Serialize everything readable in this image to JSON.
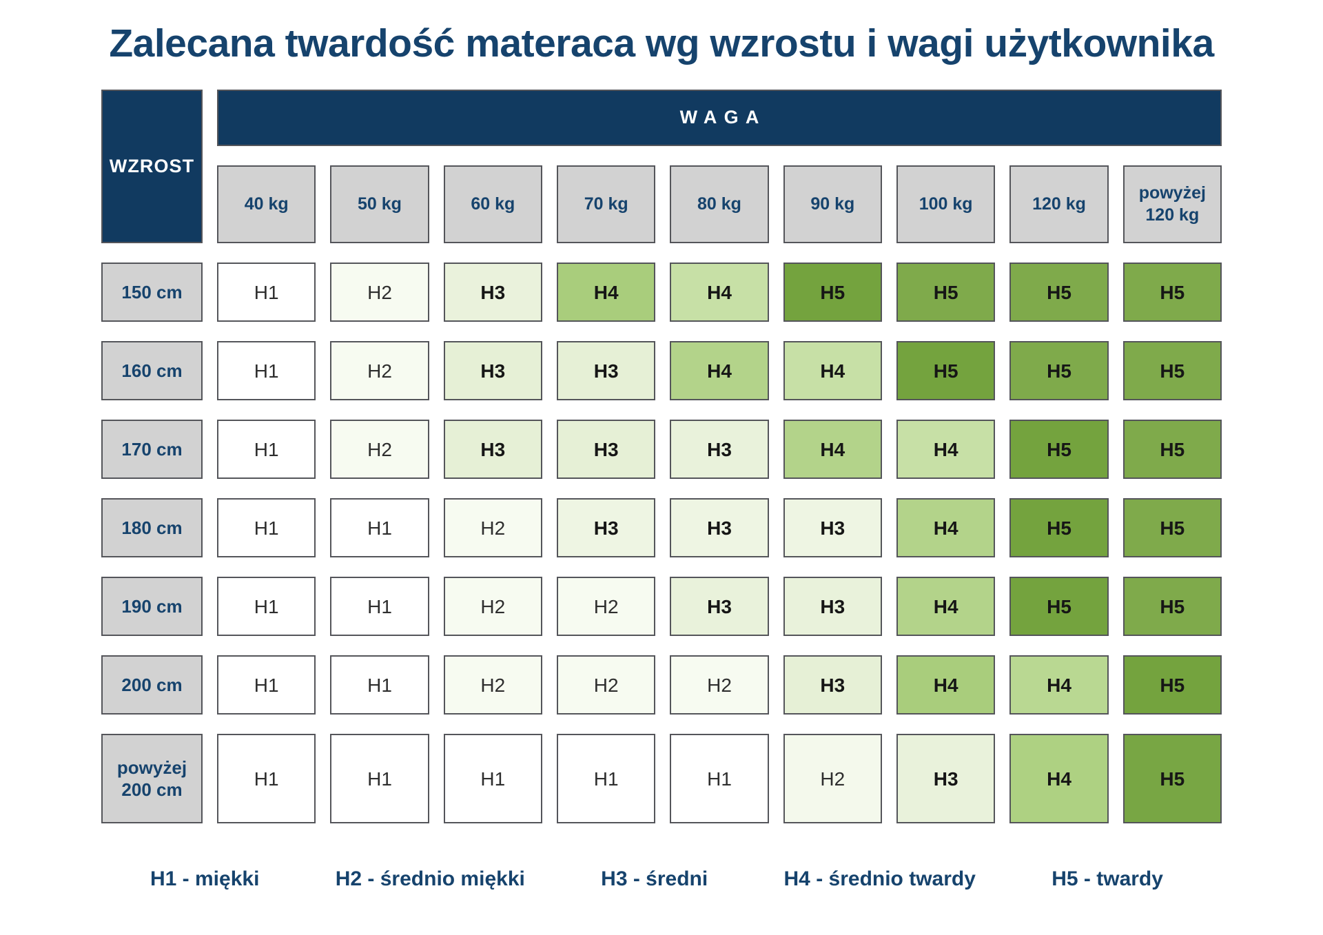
{
  "chart_data": {
    "type": "table",
    "title": "Zalecana twardość materaca wg wzrostu i wagi użytkownika",
    "col_group_label": "WAGA",
    "row_group_label": "WZROST",
    "columns": [
      "40 kg",
      "50 kg",
      "60 kg",
      "70 kg",
      "80 kg",
      "90 kg",
      "100 kg",
      "120 kg",
      "powyżej 120 kg"
    ],
    "rows": [
      {
        "label": "150 cm",
        "cells": [
          {
            "v": "H1",
            "c": "#ffffff"
          },
          {
            "v": "H2",
            "c": "#f7fbf1"
          },
          {
            "v": "H3",
            "c": "#eaf2dc"
          },
          {
            "v": "H4",
            "c": "#a9cd7c"
          },
          {
            "v": "H4",
            "c": "#c7e0a6"
          },
          {
            "v": "H5",
            "c": "#74a33e"
          },
          {
            "v": "H5",
            "c": "#7faa4b"
          },
          {
            "v": "H5",
            "c": "#7faa4b"
          },
          {
            "v": "H5",
            "c": "#7faa4b"
          }
        ]
      },
      {
        "label": "160 cm",
        "cells": [
          {
            "v": "H1",
            "c": "#ffffff"
          },
          {
            "v": "H2",
            "c": "#f7fbf1"
          },
          {
            "v": "H3",
            "c": "#e6f0d6"
          },
          {
            "v": "H3",
            "c": "#e6f0d6"
          },
          {
            "v": "H4",
            "c": "#b3d38a"
          },
          {
            "v": "H4",
            "c": "#c7e0a6"
          },
          {
            "v": "H5",
            "c": "#74a33e"
          },
          {
            "v": "H5",
            "c": "#7faa4b"
          },
          {
            "v": "H5",
            "c": "#7faa4b"
          }
        ]
      },
      {
        "label": "170 cm",
        "cells": [
          {
            "v": "H1",
            "c": "#ffffff"
          },
          {
            "v": "H2",
            "c": "#f7fbf1"
          },
          {
            "v": "H3",
            "c": "#e6f0d6"
          },
          {
            "v": "H3",
            "c": "#e6f0d6"
          },
          {
            "v": "H3",
            "c": "#e9f2db"
          },
          {
            "v": "H4",
            "c": "#b3d38a"
          },
          {
            "v": "H4",
            "c": "#c7e0a6"
          },
          {
            "v": "H5",
            "c": "#74a33e"
          },
          {
            "v": "H5",
            "c": "#7faa4b"
          }
        ]
      },
      {
        "label": "180 cm",
        "cells": [
          {
            "v": "H1",
            "c": "#ffffff"
          },
          {
            "v": "H1",
            "c": "#ffffff"
          },
          {
            "v": "H2",
            "c": "#f7fbf1"
          },
          {
            "v": "H3",
            "c": "#eef5e3"
          },
          {
            "v": "H3",
            "c": "#eef5e3"
          },
          {
            "v": "H3",
            "c": "#eef5e3"
          },
          {
            "v": "H4",
            "c": "#b3d38a"
          },
          {
            "v": "H5",
            "c": "#74a33e"
          },
          {
            "v": "H5",
            "c": "#7faa4b"
          }
        ]
      },
      {
        "label": "190 cm",
        "cells": [
          {
            "v": "H1",
            "c": "#ffffff"
          },
          {
            "v": "H1",
            "c": "#ffffff"
          },
          {
            "v": "H2",
            "c": "#f7fbf1"
          },
          {
            "v": "H2",
            "c": "#f7fbf1"
          },
          {
            "v": "H3",
            "c": "#e9f2db"
          },
          {
            "v": "H3",
            "c": "#e9f2db"
          },
          {
            "v": "H4",
            "c": "#b3d38a"
          },
          {
            "v": "H5",
            "c": "#74a33e"
          },
          {
            "v": "H5",
            "c": "#7faa4b"
          }
        ]
      },
      {
        "label": "200 cm",
        "cells": [
          {
            "v": "H1",
            "c": "#ffffff"
          },
          {
            "v": "H1",
            "c": "#ffffff"
          },
          {
            "v": "H2",
            "c": "#f7fbf1"
          },
          {
            "v": "H2",
            "c": "#f7fbf1"
          },
          {
            "v": "H2",
            "c": "#f7fbf1"
          },
          {
            "v": "H3",
            "c": "#e6f0d6"
          },
          {
            "v": "H4",
            "c": "#a9cd7c"
          },
          {
            "v": "H4",
            "c": "#b9d892"
          },
          {
            "v": "H5",
            "c": "#74a33e"
          }
        ]
      },
      {
        "label": "powyżej 200 cm",
        "cells": [
          {
            "v": "H1",
            "c": "#ffffff"
          },
          {
            "v": "H1",
            "c": "#ffffff"
          },
          {
            "v": "H1",
            "c": "#ffffff"
          },
          {
            "v": "H1",
            "c": "#ffffff"
          },
          {
            "v": "H1",
            "c": "#ffffff"
          },
          {
            "v": "H2",
            "c": "#f4f9ec"
          },
          {
            "v": "H3",
            "c": "#e9f2db"
          },
          {
            "v": "H4",
            "c": "#aed182"
          },
          {
            "v": "H5",
            "c": "#78a644"
          }
        ]
      }
    ],
    "legend": [
      "H1 - miękki",
      "H2 - średnio miękki",
      "H3 - średni",
      "H4 - średnio twardy",
      "H5 - twardy"
    ]
  },
  "colors": {
    "navy_fill": "#113a60",
    "navy_text": "#16436d",
    "header_gray": "#d2d2d2",
    "cell_border": "#54555a"
  }
}
